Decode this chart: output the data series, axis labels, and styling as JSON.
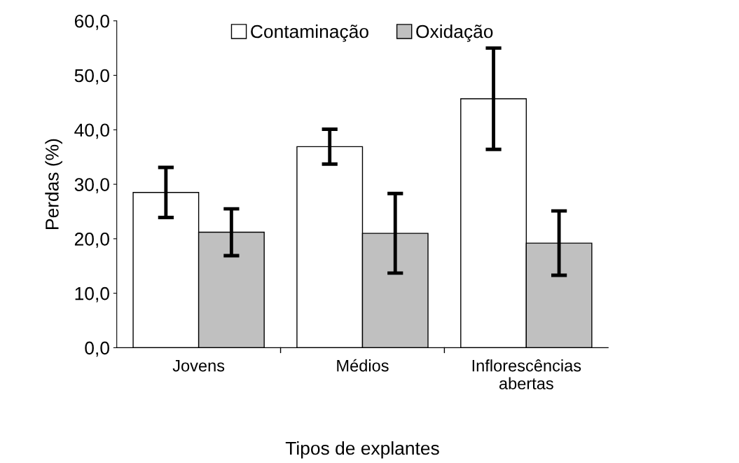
{
  "chart_data": {
    "type": "bar",
    "xlabel": "Tipos de explantes",
    "ylabel": "Perdas (%)",
    "categories": [
      "Jovens",
      "Médios",
      "Inflorescências\nabertas"
    ],
    "series": [
      {
        "name": "Contaminação",
        "color": "#ffffff",
        "values": [
          28.5,
          36.9,
          45.7
        ],
        "errors": [
          4.6,
          3.2,
          9.3
        ]
      },
      {
        "name": "Oxidação",
        "color": "#c0c0c0",
        "values": [
          21.2,
          21.0,
          19.2
        ],
        "errors": [
          4.3,
          7.3,
          5.9
        ]
      }
    ],
    "ylim": [
      0,
      60
    ],
    "yticks": [
      {
        "value": 0,
        "label": "0,0"
      },
      {
        "value": 10,
        "label": "10,0"
      },
      {
        "value": 20,
        "label": "20,0"
      },
      {
        "value": 30,
        "label": "30,0"
      },
      {
        "value": 40,
        "label": "40,0"
      },
      {
        "value": 50,
        "label": "50,0"
      },
      {
        "value": 60,
        "label": "60,0"
      }
    ],
    "legend": "top",
    "grid": false
  }
}
